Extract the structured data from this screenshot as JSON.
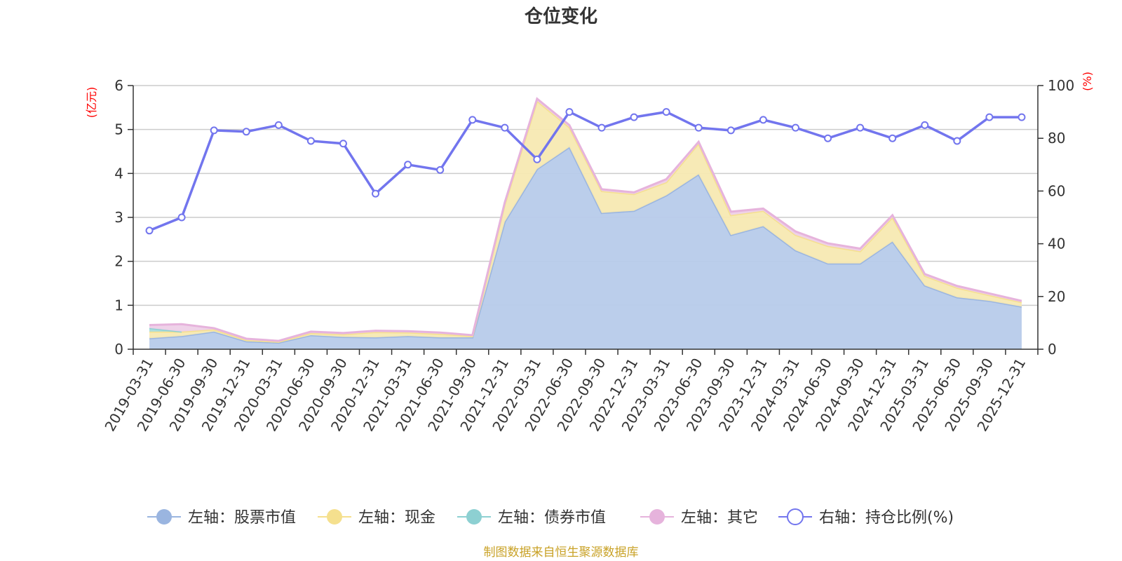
{
  "chart_data": {
    "type": "area",
    "title": "仓位变化",
    "y_left_unit": "(亿元)",
    "y_right_unit": "(%)",
    "y_left_ticks": [
      "0",
      "1",
      "2",
      "3",
      "4",
      "5",
      "6"
    ],
    "y_right_ticks": [
      "0",
      "20",
      "40",
      "60",
      "80",
      "100"
    ],
    "ylim_left": [
      0,
      6
    ],
    "ylim_right": [
      0,
      100
    ],
    "categories": [
      "2019-03-31",
      "2019-06-30",
      "2019-09-30",
      "2019-12-31",
      "2020-03-31",
      "2020-06-30",
      "2020-09-30",
      "2020-12-31",
      "2021-03-31",
      "2021-06-30",
      "2021-09-30",
      "2021-12-31",
      "2022-03-31",
      "2022-06-30",
      "2022-09-30",
      "2022-12-31",
      "2023-03-31",
      "2023-06-30",
      "2023-09-30",
      "2023-12-31",
      "2024-03-31",
      "2024-06-30",
      "2024-09-30",
      "2024-12-31",
      "2025-03-31",
      "2025-06-30",
      "2025-09-30",
      "2025-12-31"
    ],
    "series": [
      {
        "name": "左轴：股票市值",
        "axis": "left",
        "kind": "area",
        "color": "#9ab5e0",
        "fill": "#b7cbea",
        "values": [
          0.25,
          0.3,
          0.4,
          0.18,
          0.15,
          0.32,
          0.28,
          0.27,
          0.3,
          0.27,
          0.27,
          2.9,
          4.1,
          4.6,
          3.1,
          3.15,
          3.5,
          3.98,
          2.6,
          2.8,
          2.25,
          1.95,
          1.95,
          2.45,
          1.45,
          1.18,
          1.1,
          0.97
        ]
      },
      {
        "name": "左轴：现金",
        "axis": "left",
        "kind": "area",
        "color": "#f5e08e",
        "fill": "#f7e9b2",
        "values": [
          0.15,
          0.1,
          0.05,
          0.03,
          0.02,
          0.05,
          0.06,
          0.12,
          0.08,
          0.08,
          0.03,
          0.4,
          1.55,
          0.45,
          0.5,
          0.38,
          0.3,
          0.7,
          0.45,
          0.35,
          0.35,
          0.4,
          0.28,
          0.55,
          0.22,
          0.22,
          0.13,
          0.1
        ]
      },
      {
        "name": "左轴：债券市值",
        "axis": "left",
        "kind": "area",
        "color": "#8dd0d2",
        "fill": "#a9dcdd",
        "values": [
          0.08,
          0.0,
          null,
          null,
          null,
          null,
          null,
          null,
          null,
          null,
          null,
          null,
          null,
          null,
          null,
          null,
          null,
          null,
          null,
          null,
          null,
          null,
          null,
          null,
          null,
          null,
          null,
          null
        ]
      },
      {
        "name": "左轴：其它",
        "axis": "left",
        "kind": "area",
        "color": "#e6b3dc",
        "fill": "#eed0e8",
        "values": [
          0.07,
          0.17,
          0.03,
          0.03,
          0.02,
          0.03,
          0.03,
          0.03,
          0.03,
          0.03,
          0.02,
          0.04,
          0.05,
          0.05,
          0.04,
          0.04,
          0.07,
          0.04,
          0.08,
          0.05,
          0.08,
          0.06,
          0.06,
          0.05,
          0.04,
          0.04,
          0.04,
          0.03
        ]
      },
      {
        "name": "右轴：持仓比例(%)",
        "axis": "right",
        "kind": "line",
        "color": "#7275ee",
        "values": [
          45,
          50,
          83,
          82.5,
          85,
          79,
          78,
          59,
          70,
          68,
          87,
          84,
          72,
          90,
          84,
          88,
          90,
          84,
          83,
          87,
          84,
          80,
          84,
          80,
          85,
          79,
          88,
          88
        ]
      }
    ]
  },
  "source_note": "制图数据来自恒生聚源数据库"
}
